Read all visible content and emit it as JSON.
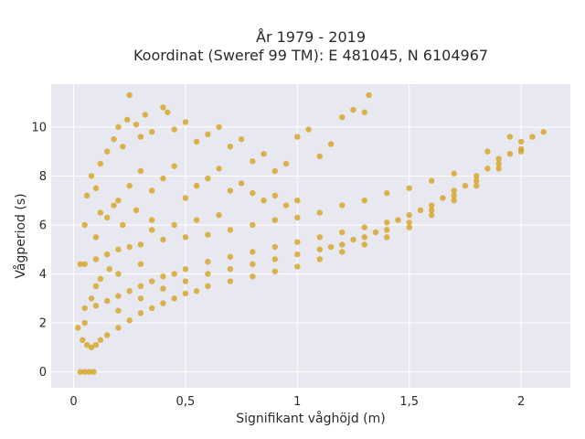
{
  "chart_data": {
    "type": "scatter",
    "title_lines": [
      "År 1979 - 2019",
      "Koordinat (Sweref 99 TM): E 481045, N 6104967"
    ],
    "xlabel": "Signifikant våghöjd (m)",
    "ylabel": "Vågperiod (s)",
    "xlim": [
      -0.1,
      2.22
    ],
    "ylim": [
      -0.65,
      11.75
    ],
    "x_ticks": [
      0,
      0.5,
      1,
      1.5,
      2
    ],
    "x_tick_labels": [
      "0",
      "0,5",
      "1",
      "1,5",
      "2"
    ],
    "y_ticks": [
      0,
      2,
      4,
      6,
      8,
      10
    ],
    "y_tick_labels": [
      "0",
      "2",
      "4",
      "6",
      "8",
      "10"
    ],
    "grid": true,
    "legend": false,
    "colors": {
      "marker": "#d4a21e",
      "plot_background": "#e8e8f0",
      "grid": "#ffffff"
    },
    "series": [
      {
        "points": [
          [
            0.03,
            0.0
          ],
          [
            0.05,
            0.0
          ],
          [
            0.07,
            0.0
          ],
          [
            0.09,
            0.0
          ],
          [
            0.02,
            1.8
          ],
          [
            0.04,
            1.3
          ],
          [
            0.06,
            1.1
          ],
          [
            0.08,
            1.0
          ],
          [
            0.1,
            1.1
          ],
          [
            0.12,
            1.3
          ],
          [
            0.15,
            1.5
          ],
          [
            0.2,
            1.8
          ],
          [
            0.25,
            2.1
          ],
          [
            0.3,
            2.4
          ],
          [
            0.35,
            2.6
          ],
          [
            0.4,
            2.8
          ],
          [
            0.45,
            3.0
          ],
          [
            0.5,
            3.2
          ],
          [
            0.55,
            3.3
          ],
          [
            0.6,
            3.5
          ],
          [
            0.7,
            3.7
          ],
          [
            0.8,
            3.9
          ],
          [
            0.9,
            4.1
          ],
          [
            1.0,
            4.3
          ],
          [
            1.1,
            4.6
          ],
          [
            1.2,
            4.9
          ],
          [
            1.3,
            5.2
          ],
          [
            1.4,
            5.5
          ],
          [
            1.5,
            5.9
          ],
          [
            1.6,
            6.4
          ],
          [
            1.7,
            7.0
          ],
          [
            1.8,
            7.6
          ],
          [
            1.9,
            8.3
          ],
          [
            2.0,
            9.0
          ],
          [
            0.05,
            2.6
          ],
          [
            0.1,
            2.7
          ],
          [
            0.15,
            2.9
          ],
          [
            0.2,
            3.1
          ],
          [
            0.25,
            3.3
          ],
          [
            0.3,
            3.5
          ],
          [
            0.35,
            3.7
          ],
          [
            0.4,
            3.9
          ],
          [
            0.45,
            4.0
          ],
          [
            0.5,
            4.2
          ],
          [
            0.6,
            4.5
          ],
          [
            0.7,
            4.7
          ],
          [
            0.8,
            4.9
          ],
          [
            0.9,
            5.1
          ],
          [
            1.0,
            5.3
          ],
          [
            1.1,
            5.5
          ],
          [
            1.2,
            5.7
          ],
          [
            1.3,
            5.9
          ],
          [
            1.4,
            6.1
          ],
          [
            1.5,
            6.4
          ],
          [
            1.6,
            6.8
          ],
          [
            1.7,
            7.4
          ],
          [
            1.8,
            8.0
          ],
          [
            1.9,
            8.7
          ],
          [
            2.0,
            9.4
          ],
          [
            2.05,
            9.6
          ],
          [
            2.1,
            9.8
          ],
          [
            1.95,
            9.6
          ],
          [
            1.85,
            9.0
          ],
          [
            0.05,
            4.4
          ],
          [
            0.1,
            4.6
          ],
          [
            0.15,
            4.8
          ],
          [
            0.2,
            5.0
          ],
          [
            0.25,
            5.1
          ],
          [
            0.3,
            5.2
          ],
          [
            0.4,
            5.4
          ],
          [
            0.5,
            5.5
          ],
          [
            0.6,
            5.6
          ],
          [
            0.7,
            5.8
          ],
          [
            0.8,
            6.0
          ],
          [
            0.9,
            6.2
          ],
          [
            1.0,
            6.3
          ],
          [
            1.1,
            6.5
          ],
          [
            1.2,
            6.8
          ],
          [
            1.3,
            7.0
          ],
          [
            1.4,
            7.3
          ],
          [
            1.5,
            7.5
          ],
          [
            1.6,
            7.8
          ],
          [
            1.7,
            8.1
          ],
          [
            0.03,
            4.4
          ],
          [
            0.05,
            6.0
          ],
          [
            0.06,
            7.2
          ],
          [
            0.08,
            8.0
          ],
          [
            0.1,
            7.5
          ],
          [
            0.12,
            8.5
          ],
          [
            0.15,
            9.0
          ],
          [
            0.18,
            9.5
          ],
          [
            0.2,
            10.0
          ],
          [
            0.22,
            9.2
          ],
          [
            0.24,
            10.3
          ],
          [
            0.25,
            11.3
          ],
          [
            0.28,
            10.1
          ],
          [
            0.3,
            9.6
          ],
          [
            0.32,
            10.5
          ],
          [
            0.35,
            9.8
          ],
          [
            0.4,
            10.8
          ],
          [
            0.42,
            10.6
          ],
          [
            0.45,
            9.9
          ],
          [
            0.5,
            10.2
          ],
          [
            0.55,
            9.4
          ],
          [
            0.6,
            9.7
          ],
          [
            0.65,
            10.0
          ],
          [
            0.7,
            9.2
          ],
          [
            0.75,
            9.5
          ],
          [
            0.8,
            8.6
          ],
          [
            0.85,
            8.9
          ],
          [
            0.9,
            8.2
          ],
          [
            0.95,
            8.5
          ],
          [
            1.0,
            9.6
          ],
          [
            1.05,
            9.9
          ],
          [
            1.1,
            8.8
          ],
          [
            1.15,
            9.3
          ],
          [
            1.2,
            10.4
          ],
          [
            1.25,
            10.7
          ],
          [
            1.3,
            10.6
          ],
          [
            1.32,
            11.3
          ],
          [
            0.15,
            6.3
          ],
          [
            0.2,
            7.0
          ],
          [
            0.25,
            7.6
          ],
          [
            0.3,
            8.2
          ],
          [
            0.35,
            7.4
          ],
          [
            0.4,
            7.9
          ],
          [
            0.45,
            8.4
          ],
          [
            0.5,
            7.1
          ],
          [
            0.55,
            7.6
          ],
          [
            0.6,
            7.9
          ],
          [
            0.65,
            8.3
          ],
          [
            0.7,
            7.4
          ],
          [
            0.75,
            7.7
          ],
          [
            0.8,
            7.3
          ],
          [
            0.85,
            7.0
          ],
          [
            0.9,
            7.2
          ],
          [
            0.95,
            6.8
          ],
          [
            1.0,
            7.0
          ],
          [
            0.2,
            2.5
          ],
          [
            0.3,
            3.0
          ],
          [
            0.4,
            3.4
          ],
          [
            0.5,
            3.7
          ],
          [
            0.6,
            4.0
          ],
          [
            0.7,
            4.2
          ],
          [
            0.8,
            4.4
          ],
          [
            0.9,
            4.6
          ],
          [
            1.0,
            4.8
          ],
          [
            1.1,
            5.0
          ],
          [
            1.2,
            5.2
          ],
          [
            1.3,
            5.5
          ],
          [
            1.4,
            5.8
          ],
          [
            1.5,
            6.1
          ],
          [
            1.6,
            6.6
          ],
          [
            1.7,
            7.2
          ],
          [
            1.8,
            7.8
          ],
          [
            1.9,
            8.5
          ],
          [
            0.1,
            3.5
          ],
          [
            0.2,
            4.0
          ],
          [
            0.3,
            4.4
          ],
          [
            0.1,
            5.5
          ],
          [
            0.12,
            6.5
          ],
          [
            0.18,
            6.8
          ],
          [
            0.22,
            6.0
          ],
          [
            0.28,
            6.6
          ],
          [
            0.35,
            6.2
          ],
          [
            0.05,
            2.0
          ],
          [
            0.08,
            3.0
          ],
          [
            0.12,
            3.8
          ],
          [
            0.16,
            4.2
          ],
          [
            0.35,
            5.8
          ],
          [
            0.45,
            6.0
          ],
          [
            0.55,
            6.2
          ],
          [
            0.65,
            6.4
          ],
          [
            1.75,
            7.6
          ],
          [
            1.85,
            8.3
          ],
          [
            1.95,
            8.9
          ],
          [
            2.0,
            9.1
          ],
          [
            1.65,
            7.1
          ],
          [
            1.55,
            6.6
          ],
          [
            1.45,
            6.2
          ],
          [
            1.35,
            5.7
          ],
          [
            1.25,
            5.4
          ],
          [
            1.15,
            5.1
          ]
        ]
      }
    ]
  }
}
